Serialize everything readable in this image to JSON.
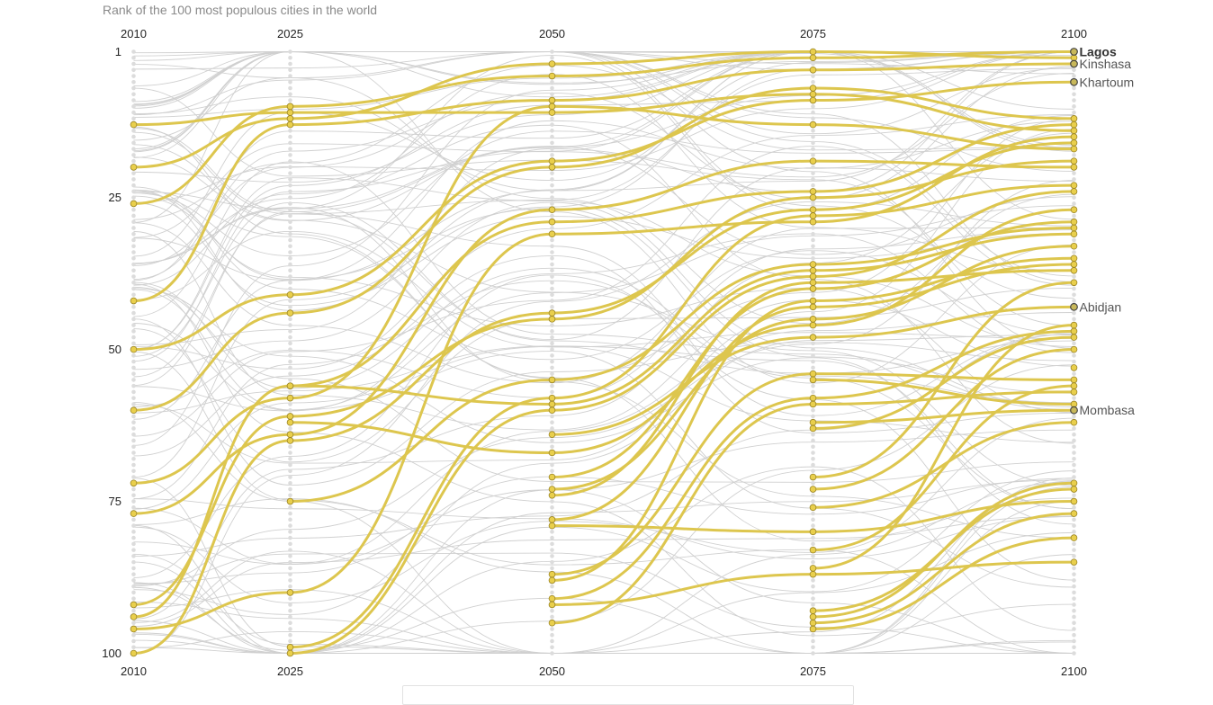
{
  "subtitle": "Rank of the 100 most populous cities in the world",
  "colors": {
    "highlight": "#ddc64e",
    "gray": "#d0d0d0"
  },
  "chart_data": {
    "type": "bump",
    "title": "Rank of the 100 most populous cities in the world",
    "years": [
      "2010",
      "2025",
      "2050",
      "2075",
      "2100"
    ],
    "rank_ticks": [
      1,
      25,
      50,
      75,
      100
    ],
    "ylim": [
      1,
      100
    ],
    "labeled_cities": [
      {
        "name": "Lagos",
        "rank_2100": 1,
        "bold": true
      },
      {
        "name": "Kinshasa",
        "rank_2100": 3,
        "bold": false
      },
      {
        "name": "Khartoum",
        "rank_2100": 6,
        "bold": false
      },
      {
        "name": "Abidjan",
        "rank_2100": 43,
        "bold": false
      },
      {
        "name": "Mombasa",
        "rank_2100": 60,
        "bold": false
      }
    ],
    "highlighted_series": [
      [
        13,
        11,
        11,
        8,
        14
      ],
      [
        20,
        12,
        3,
        1,
        2
      ],
      [
        26,
        10,
        5,
        2,
        1
      ],
      [
        42,
        13,
        9,
        4,
        3
      ],
      [
        50,
        41,
        19,
        9,
        6
      ],
      [
        60,
        44,
        20,
        7,
        12
      ],
      [
        72,
        58,
        10,
        13,
        17
      ],
      [
        77,
        64,
        27,
        19,
        20
      ],
      [
        94,
        56,
        29,
        24,
        13
      ],
      [
        96,
        90,
        31,
        29,
        15
      ],
      [
        100,
        65,
        44,
        27,
        16
      ],
      [
        92,
        61,
        45,
        25,
        19
      ],
      [
        null,
        56,
        59,
        37,
        31
      ],
      [
        null,
        99,
        58,
        28,
        23
      ],
      [
        null,
        100,
        60,
        38,
        24
      ],
      [
        null,
        75,
        55,
        36,
        30
      ],
      [
        null,
        62,
        67,
        46,
        27
      ],
      [
        null,
        null,
        71,
        40,
        29
      ],
      [
        null,
        null,
        73,
        45,
        33
      ],
      [
        null,
        null,
        74,
        39,
        37
      ],
      [
        null,
        null,
        78,
        43,
        36
      ],
      [
        null,
        null,
        79,
        80,
        75
      ],
      [
        null,
        null,
        87,
        54,
        55
      ],
      [
        null,
        null,
        88,
        42,
        35
      ],
      [
        null,
        null,
        91,
        58,
        47
      ],
      [
        null,
        null,
        92,
        87,
        85
      ],
      [
        null,
        null,
        64,
        48,
        43
      ],
      [
        null,
        null,
        95,
        59,
        57
      ],
      [
        null,
        null,
        null,
        55,
        59
      ],
      [
        null,
        null,
        null,
        62,
        60
      ],
      [
        null,
        null,
        null,
        63,
        48
      ],
      [
        null,
        null,
        null,
        71,
        39
      ],
      [
        null,
        null,
        null,
        73,
        50
      ],
      [
        null,
        null,
        null,
        76,
        62
      ],
      [
        null,
        null,
        null,
        83,
        56
      ],
      [
        null,
        null,
        null,
        86,
        46
      ],
      [
        null,
        null,
        null,
        93,
        73
      ],
      [
        null,
        null,
        null,
        94,
        72
      ],
      [
        null,
        null,
        null,
        95,
        77
      ],
      [
        null,
        null,
        null,
        96,
        81
      ],
      [
        null,
        null,
        null,
        null,
        53
      ]
    ]
  }
}
